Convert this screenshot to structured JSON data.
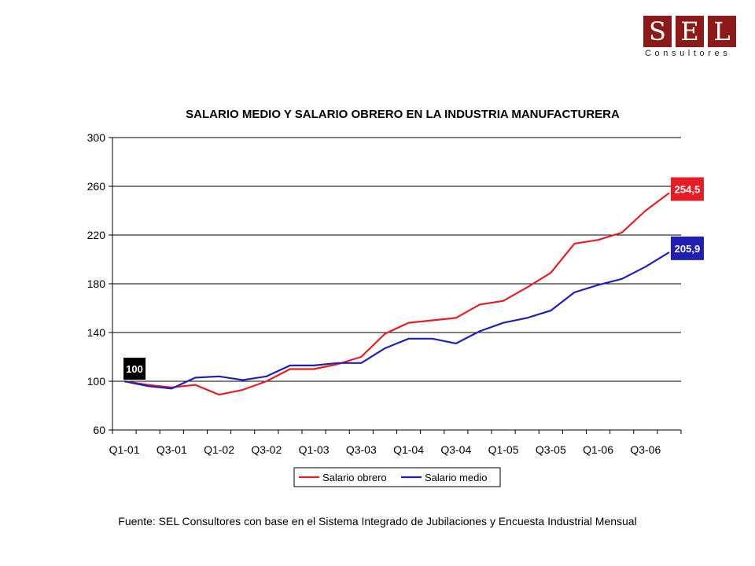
{
  "logo": {
    "letters": [
      "S",
      "E",
      "L"
    ],
    "subtitle": "Consultores",
    "color": "#8b1b1b"
  },
  "chart_data": {
    "type": "line",
    "title": "SALARIO MEDIO Y SALARIO OBRERO EN LA INDUSTRIA MANUFACTURERA",
    "xlabel": "",
    "ylabel": "",
    "ylim": [
      60,
      300
    ],
    "yticks": [
      60,
      100,
      140,
      180,
      220,
      260,
      300
    ],
    "x": [
      "Q1-01",
      "Q2-01",
      "Q3-01",
      "Q4-01",
      "Q1-02",
      "Q2-02",
      "Q3-02",
      "Q4-02",
      "Q1-03",
      "Q2-03",
      "Q3-03",
      "Q4-03",
      "Q1-04",
      "Q2-04",
      "Q3-04",
      "Q4-04",
      "Q1-05",
      "Q2-05",
      "Q3-05",
      "Q4-05",
      "Q1-06",
      "Q2-06",
      "Q3-06",
      "Q4-06"
    ],
    "xtick_labels": [
      "Q1-01",
      "Q3-01",
      "Q1-02",
      "Q3-02",
      "Q1-03",
      "Q3-03",
      "Q1-04",
      "Q3-04",
      "Q1-05",
      "Q3-05",
      "Q1-06",
      "Q3-06"
    ],
    "grid": "horizontal",
    "legend_position": "bottom",
    "series": [
      {
        "name": "Salario obrero",
        "color": "#e31e24",
        "values": [
          100,
          97,
          95,
          97,
          89,
          93,
          100,
          110,
          110,
          114,
          120,
          139,
          148,
          150,
          152,
          163,
          166,
          177,
          189,
          213,
          216,
          222,
          240,
          254.5
        ]
      },
      {
        "name": "Salario medio",
        "color": "#1f1fb4",
        "values": [
          100,
          96,
          94,
          103,
          104,
          101,
          104,
          113,
          113,
          115,
          115,
          127,
          135,
          135,
          131,
          141,
          148,
          152,
          158,
          173,
          179,
          184,
          194,
          205.9
        ]
      }
    ],
    "annotations": [
      {
        "label": "100",
        "x": "Q1-01",
        "value": 100,
        "bg": "#000000"
      },
      {
        "label": "254,5",
        "x": "Q4-06",
        "value": 254.5,
        "bg": "#e31e24"
      },
      {
        "label": "205,9",
        "x": "Q4-06",
        "value": 205.9,
        "bg": "#1f1fb4"
      }
    ]
  },
  "source": "Fuente: SEL Consultores con base en el Sistema Integrado de Jubilaciones y Encuesta Industrial Mensual"
}
